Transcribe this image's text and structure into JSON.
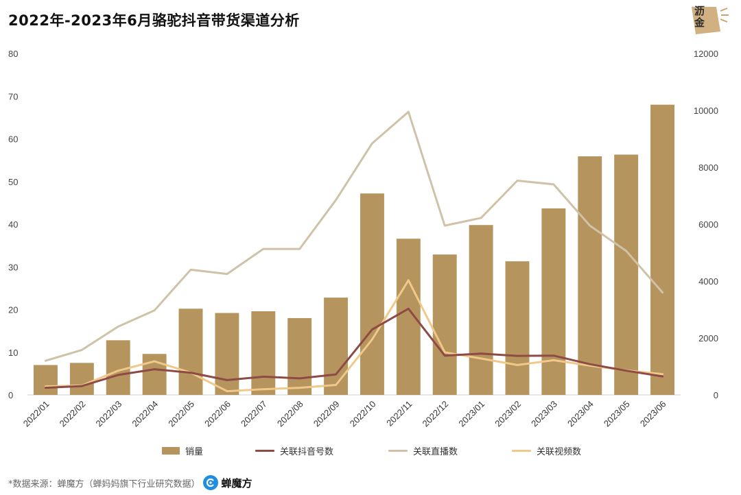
{
  "title": "2022年-2023年6月骆驼抖音带货渠道分析",
  "brand_tag": "沥金",
  "source_text": "*数据来源：蝉魔方（蝉妈妈旗下行业研究数据）",
  "brand_name": "蝉魔方",
  "colors": {
    "bar": "#b5945e",
    "douyin_line": "#8e4a45",
    "live_line": "#cfc2a8",
    "video_line": "#f0c98a",
    "axis": "#cccccc",
    "brand_blue": "#1f8ee0",
    "tag": "#c9a26c"
  },
  "legend": {
    "bar_label": "销量",
    "douyin_label": "关联抖音号数",
    "live_label": "关联直播数",
    "video_label": "关联视频数"
  },
  "chart_data": {
    "type": "bar+line",
    "title": "2022年-2023年6月骆驼抖音带货渠道分析",
    "categories": [
      "2022/01",
      "2022/02",
      "2022/03",
      "2022/04",
      "2022/05",
      "2022/06",
      "2022/07",
      "2022/08",
      "2022/09",
      "2022/10",
      "2022/11",
      "2022/12",
      "2023/01",
      "2023/02",
      "2023/03",
      "2023/04",
      "2023/05",
      "2023/06"
    ],
    "y_left": {
      "ylim": [
        0,
        80
      ],
      "ticks": [
        0,
        10,
        20,
        30,
        40,
        50,
        60,
        70,
        80
      ]
    },
    "y_right": {
      "ylim": [
        0,
        12000
      ],
      "ticks": [
        0,
        2000,
        4000,
        6000,
        8000,
        10000,
        12000
      ]
    },
    "series": [
      {
        "name": "销量",
        "type": "bar",
        "axis": "left",
        "values": [
          7.0,
          7.5,
          12.8,
          9.6,
          20.2,
          19.2,
          19.6,
          18.0,
          22.8,
          47.2,
          36.6,
          32.9,
          39.8,
          31.3,
          43.7,
          55.9,
          56.3,
          68.0
        ]
      },
      {
        "name": "关联抖音号数",
        "type": "line",
        "axis": "right",
        "values": [
          250,
          310,
          700,
          900,
          780,
          520,
          640,
          580,
          720,
          2300,
          3030,
          1380,
          1450,
          1370,
          1380,
          1080,
          850,
          650
        ]
      },
      {
        "name": "关联直播数",
        "type": "line",
        "axis": "right",
        "values": [
          1200,
          1580,
          2400,
          2970,
          4400,
          4250,
          5130,
          5130,
          6850,
          8840,
          9950,
          5950,
          6220,
          7530,
          7400,
          5950,
          5060,
          3600
        ]
      },
      {
        "name": "关联视频数",
        "type": "line",
        "axis": "right",
        "values": [
          300,
          330,
          850,
          1180,
          780,
          130,
          200,
          250,
          350,
          1950,
          4030,
          1500,
          1280,
          1050,
          1220,
          1030,
          860,
          730
        ]
      }
    ]
  }
}
